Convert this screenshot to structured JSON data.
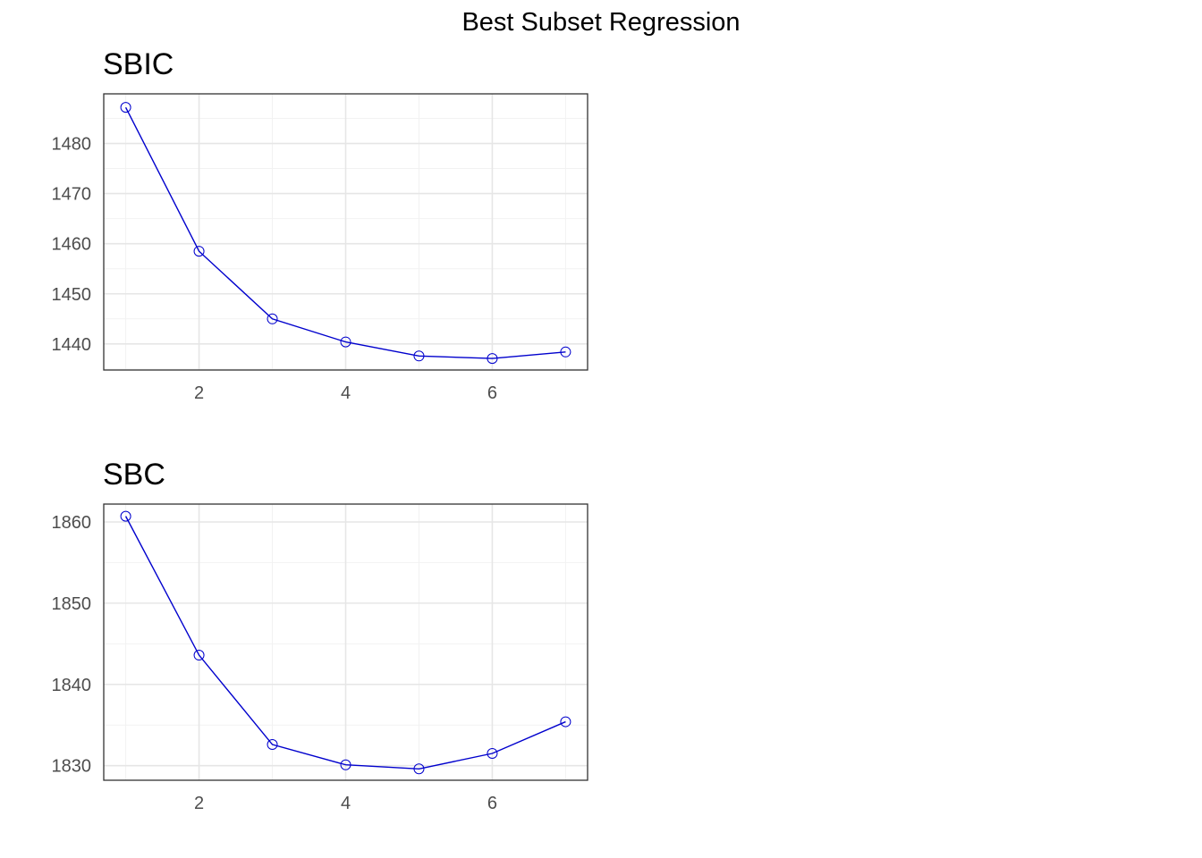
{
  "figure": {
    "title": "Best Subset Regression"
  },
  "chart_data": [
    {
      "type": "line",
      "title": "SBIC",
      "xlabel": "",
      "ylabel": "",
      "x": [
        1,
        2,
        3,
        4,
        5,
        6,
        7
      ],
      "series": [
        {
          "values": [
            1487.2,
            1458.5,
            1445.0,
            1440.4,
            1437.6,
            1437.1,
            1438.4
          ]
        }
      ],
      "xlim": [
        0.7,
        7.3
      ],
      "ylim": [
        1434.8,
        1489.9
      ],
      "xticks": [
        2,
        4,
        6
      ],
      "yticks": [
        1440,
        1450,
        1460,
        1470,
        1480
      ],
      "grid": true,
      "line_color": "#0000CD",
      "marker": "open-circle"
    },
    {
      "type": "line",
      "title": "SBC",
      "xlabel": "",
      "ylabel": "",
      "x": [
        1,
        2,
        3,
        4,
        5,
        6,
        7
      ],
      "series": [
        {
          "values": [
            1860.7,
            1843.6,
            1832.6,
            1830.1,
            1829.6,
            1831.5,
            1835.4
          ]
        }
      ],
      "xlim": [
        0.7,
        7.3
      ],
      "ylim": [
        1828.2,
        1862.2
      ],
      "xticks": [
        2,
        4,
        6
      ],
      "yticks": [
        1830,
        1840,
        1850,
        1860
      ],
      "grid": true,
      "line_color": "#0000CD",
      "marker": "open-circle"
    }
  ]
}
